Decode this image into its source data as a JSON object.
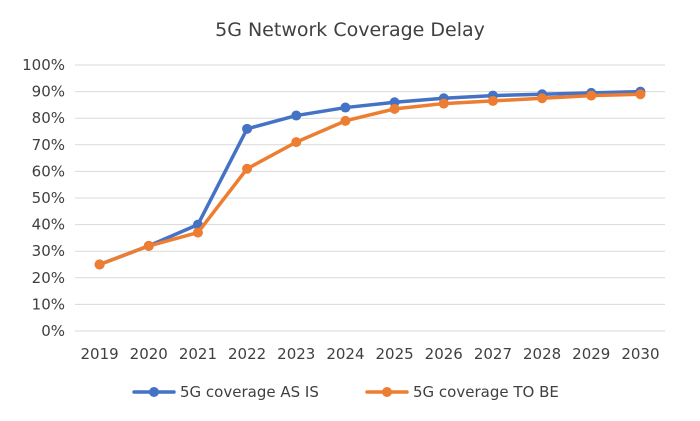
{
  "chart_data": {
    "type": "line",
    "title": "5G Network Coverage Delay",
    "xlabel": "",
    "ylabel": "",
    "categories": [
      "2019",
      "2020",
      "2021",
      "2022",
      "2023",
      "2024",
      "2025",
      "2026",
      "2027",
      "2028",
      "2029",
      "2030"
    ],
    "y_ticks": [
      "0%",
      "10%",
      "20%",
      "30%",
      "40%",
      "50%",
      "60%",
      "70%",
      "80%",
      "90%",
      "100%"
    ],
    "ylim": [
      0,
      100
    ],
    "grid": "horizontal",
    "legend_position": "bottom",
    "series": [
      {
        "name": "5G coverage AS IS",
        "color": "#4472C4",
        "values": [
          25,
          32,
          40,
          76,
          81,
          84,
          86,
          87.5,
          88.5,
          89,
          89.5,
          90
        ]
      },
      {
        "name": "5G coverage TO BE",
        "color": "#ED7D31",
        "values": [
          25,
          32,
          37,
          61,
          71,
          79,
          83.5,
          85.5,
          86.5,
          87.5,
          88.5,
          89
        ]
      }
    ]
  }
}
